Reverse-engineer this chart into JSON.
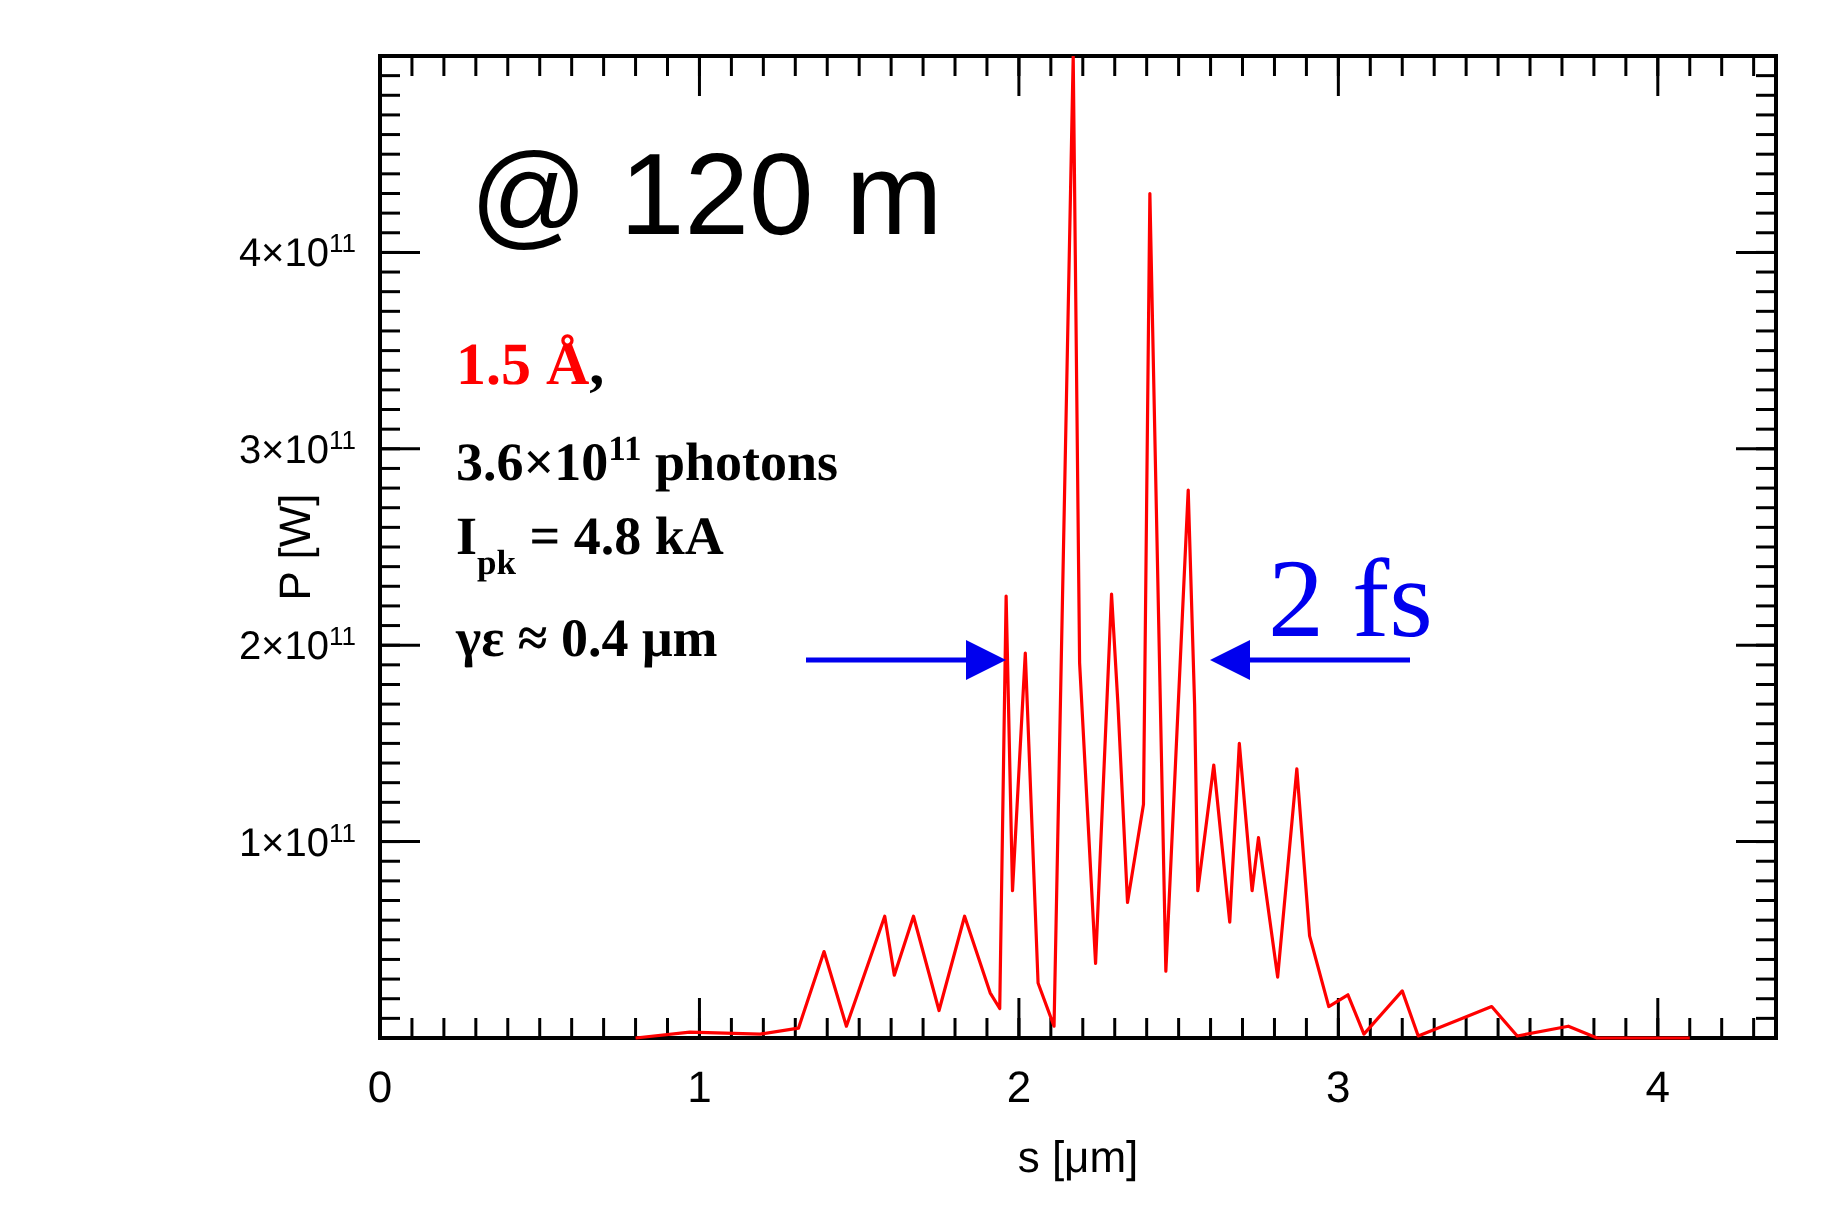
{
  "chart_data": {
    "type": "line",
    "xlabel": "s [μm]",
    "ylabel": "P [W]",
    "xlim": [
      0,
      4.37
    ],
    "ylim": [
      0,
      500000000000.0
    ],
    "xticks": [
      0,
      1,
      2,
      3,
      4
    ],
    "yticks": [
      {
        "value": 100000000000.0,
        "label": "1×10$^{11}$"
      },
      {
        "value": 200000000000.0,
        "label": "2×10$^{11}$"
      },
      {
        "value": 300000000000.0,
        "label": "3×10$^{11}$"
      },
      {
        "value": 400000000000.0,
        "label": "4×10$^{11}$"
      }
    ],
    "grid": false,
    "marker": "none",
    "line_style": "solid",
    "series": [
      {
        "color": "#ff0000",
        "x": [
          0.8,
          0.97,
          1.19,
          1.31,
          1.39,
          1.46,
          1.58,
          1.61,
          1.67,
          1.75,
          1.83,
          1.91,
          1.94,
          1.96,
          1.98,
          2.02,
          2.06,
          2.11,
          2.17,
          2.19,
          2.24,
          2.29,
          2.31,
          2.34,
          2.39,
          2.41,
          2.46,
          2.53,
          2.55,
          2.56,
          2.61,
          2.66,
          2.69,
          2.73,
          2.75,
          2.81,
          2.87,
          2.91,
          2.97,
          3.03,
          3.08,
          3.2,
          3.25,
          3.48,
          3.56,
          3.72,
          3.81,
          4.1
        ],
        "values": [
          0,
          3000000000.0,
          2000000000.0,
          5000000000.0,
          44000000000.0,
          6000000000.0,
          62000000000.0,
          32000000000.0,
          62000000000.0,
          14000000000.0,
          62000000000.0,
          23000000000.0,
          15000000000.0,
          225000000000.0,
          75000000000.0,
          196000000000.0,
          28000000000.0,
          6000000000.0,
          500000000000.0,
          191000000000.0,
          38000000000.0,
          226000000000.0,
          170000000000.0,
          69000000000.0,
          119000000000.0,
          430000000000.0,
          34000000000.0,
          279000000000.0,
          170000000000.0,
          75000000000.0,
          139000000000.0,
          59000000000.0,
          150000000000.0,
          75000000000.0,
          102000000000.0,
          31000000000.0,
          137000000000.0,
          52000000000.0,
          16000000000.0,
          22000000000.0,
          2000000000.0,
          24000000000.0,
          1000000000.0,
          16000000000.0,
          1000000000.0,
          6000000000.0,
          0,
          0
        ]
      }
    ],
    "annotations": [
      "@ 120 m",
      "1.5 Å,",
      "3.6×10$^{11}$ photons",
      "I$_{pk}$ = 4.8 kA",
      "γε ≈ 0.4 μm",
      "2 fs"
    ]
  }
}
